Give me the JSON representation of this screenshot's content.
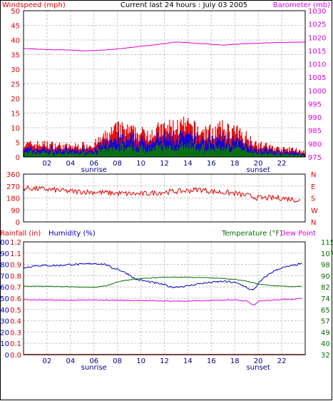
{
  "header": {
    "left": "Windspeed (mph)",
    "center": "Current last 24 hours : July 03 2005",
    "right": "Barometer (mb)"
  },
  "colors": {
    "wind": "#e00000",
    "gust": "#0000e0",
    "windLow": "#008000",
    "baro": "#dd00dd",
    "dir": "#e00000",
    "hum": "#0000c0",
    "temp": "#007000",
    "dew": "#dd00dd",
    "rain": "#e00000",
    "grid": "#c8c8c8"
  },
  "x_hour_labels": [
    "02",
    "04",
    "06",
    "08",
    "10",
    "12",
    "14",
    "16",
    "18",
    "20",
    "22"
  ],
  "sunrise_label": "sunrise",
  "sunset_label": "sunset",
  "sunrise_hour": 6.0,
  "sunset_hour": 20.0,
  "panel1": {
    "left_ticks": [
      0,
      5,
      10,
      15,
      20,
      25,
      30,
      35,
      40,
      45,
      50
    ],
    "right_ticks": [
      975,
      980,
      985,
      990,
      995,
      1000,
      1005,
      1010,
      1015,
      1020,
      1025,
      1030
    ]
  },
  "panel2": {
    "left_ticks": [
      0,
      90,
      180,
      270,
      360
    ],
    "right_labels": [
      "N",
      "W",
      "S",
      "E",
      "N"
    ]
  },
  "panel3": {
    "rain_label": "Rainfall (in)",
    "hum_label": "Humidity (%)",
    "temp_label": "Temperature (°F)",
    "dew_label": "Dew Point",
    "hum_ticks": [
      0,
      10,
      20,
      30,
      40,
      50,
      60,
      70,
      80,
      90,
      100
    ],
    "rain_ticks": [
      "0.0",
      "0.1",
      "0.3",
      "0.4",
      "0.5",
      "0.6",
      "0.7",
      "0.8",
      "0.9",
      "1.1",
      "1.2"
    ],
    "temp_ticks": [
      32,
      40,
      49,
      57,
      65,
      74,
      82,
      90,
      98,
      107,
      115
    ]
  },
  "chart_data": [
    {
      "type": "bar",
      "title": "Windspeed (mph) / Barometer (mb)",
      "x_range_hours": [
        0,
        24
      ],
      "ylim": [
        0,
        50
      ],
      "y2lim": [
        975,
        1030
      ],
      "series": [
        {
          "name": "Windspeed (mph)",
          "description": "gust bars",
          "x": [
            0,
            2,
            4,
            6,
            7,
            8,
            9,
            10,
            11,
            12,
            13,
            14,
            15,
            16,
            17,
            18,
            19,
            20,
            21,
            22,
            23,
            24
          ],
          "values": [
            5,
            5,
            4,
            5,
            8,
            11,
            10,
            9,
            10,
            11,
            12,
            12,
            10,
            10,
            11,
            10,
            8,
            5,
            4,
            3,
            3,
            2
          ]
        },
        {
          "name": "Barometer (mb)",
          "x": [
            0,
            2,
            4,
            5,
            6,
            8,
            10,
            12,
            13,
            14,
            16,
            17,
            18,
            20,
            22,
            24
          ],
          "values": [
            1015.8,
            1015.4,
            1015.2,
            1014.9,
            1015.0,
            1015.6,
            1016.6,
            1017.6,
            1018.2,
            1018.0,
            1017.4,
            1017.0,
            1017.4,
            1017.8,
            1018.1,
            1018.2
          ]
        }
      ]
    },
    {
      "type": "line",
      "title": "Wind direction",
      "x_range_hours": [
        0,
        24
      ],
      "ylim": [
        0,
        360
      ],
      "series": [
        {
          "name": "Wind direction",
          "x": [
            0,
            2,
            4,
            6,
            8,
            10,
            12,
            14,
            15,
            16,
            18,
            19,
            20,
            22,
            23,
            24
          ],
          "values": [
            255,
            245,
            230,
            225,
            215,
            210,
            225,
            235,
            245,
            230,
            215,
            200,
            180,
            180,
            170,
            150
          ]
        }
      ]
    },
    {
      "type": "line",
      "title": "Rainfall / Humidity / Temperature / Dew Point",
      "x_range_hours": [
        0,
        24
      ],
      "ylim": [
        0,
        100
      ],
      "y2lim": [
        32,
        115
      ],
      "series": [
        {
          "name": "Humidity (%)",
          "x": [
            0,
            1,
            2,
            3,
            4,
            5,
            6,
            7,
            7.5,
            8,
            9,
            9.5,
            10,
            11,
            12,
            12.5,
            13,
            14,
            15,
            16,
            17,
            18,
            18.5,
            19,
            19.3,
            19.6,
            19.8,
            20,
            20.5,
            21,
            21.5,
            22,
            23,
            23.7
          ],
          "values": [
            77,
            79,
            79,
            79,
            80,
            80,
            81,
            80,
            77,
            76,
            71,
            67,
            66,
            64,
            62,
            60,
            60,
            61,
            63,
            64,
            65,
            64,
            62,
            60,
            57,
            58,
            60,
            63,
            68,
            72,
            75,
            77,
            79,
            81
          ]
        },
        {
          "name": "Temperature (°F)",
          "x": [
            0,
            2,
            4,
            6,
            7,
            7.5,
            8,
            9,
            10,
            12,
            14,
            16,
            18,
            19,
            19.5,
            20,
            21,
            22,
            23,
            23.7
          ],
          "values": [
            82.3,
            82.3,
            82,
            81.5,
            82.5,
            84,
            85.5,
            87,
            88,
            89,
            89,
            88.5,
            87.5,
            86,
            85,
            84,
            83,
            82.5,
            82,
            82.3
          ]
        },
        {
          "name": "Dew Point",
          "x": [
            0,
            2,
            4,
            6,
            8,
            10,
            12,
            14,
            16,
            18,
            19,
            19.3,
            19.6,
            19.8,
            20,
            22,
            23.7
          ],
          "values": [
            72.4,
            72.2,
            72,
            72.2,
            72,
            71.9,
            71.5,
            71.4,
            71.8,
            72.5,
            71.5,
            70,
            68.5,
            69.5,
            71.5,
            72.5,
            73.2
          ]
        },
        {
          "name": "Rainfall (in)",
          "x": [
            0,
            24
          ],
          "values": [
            0,
            0
          ]
        }
      ]
    }
  ]
}
